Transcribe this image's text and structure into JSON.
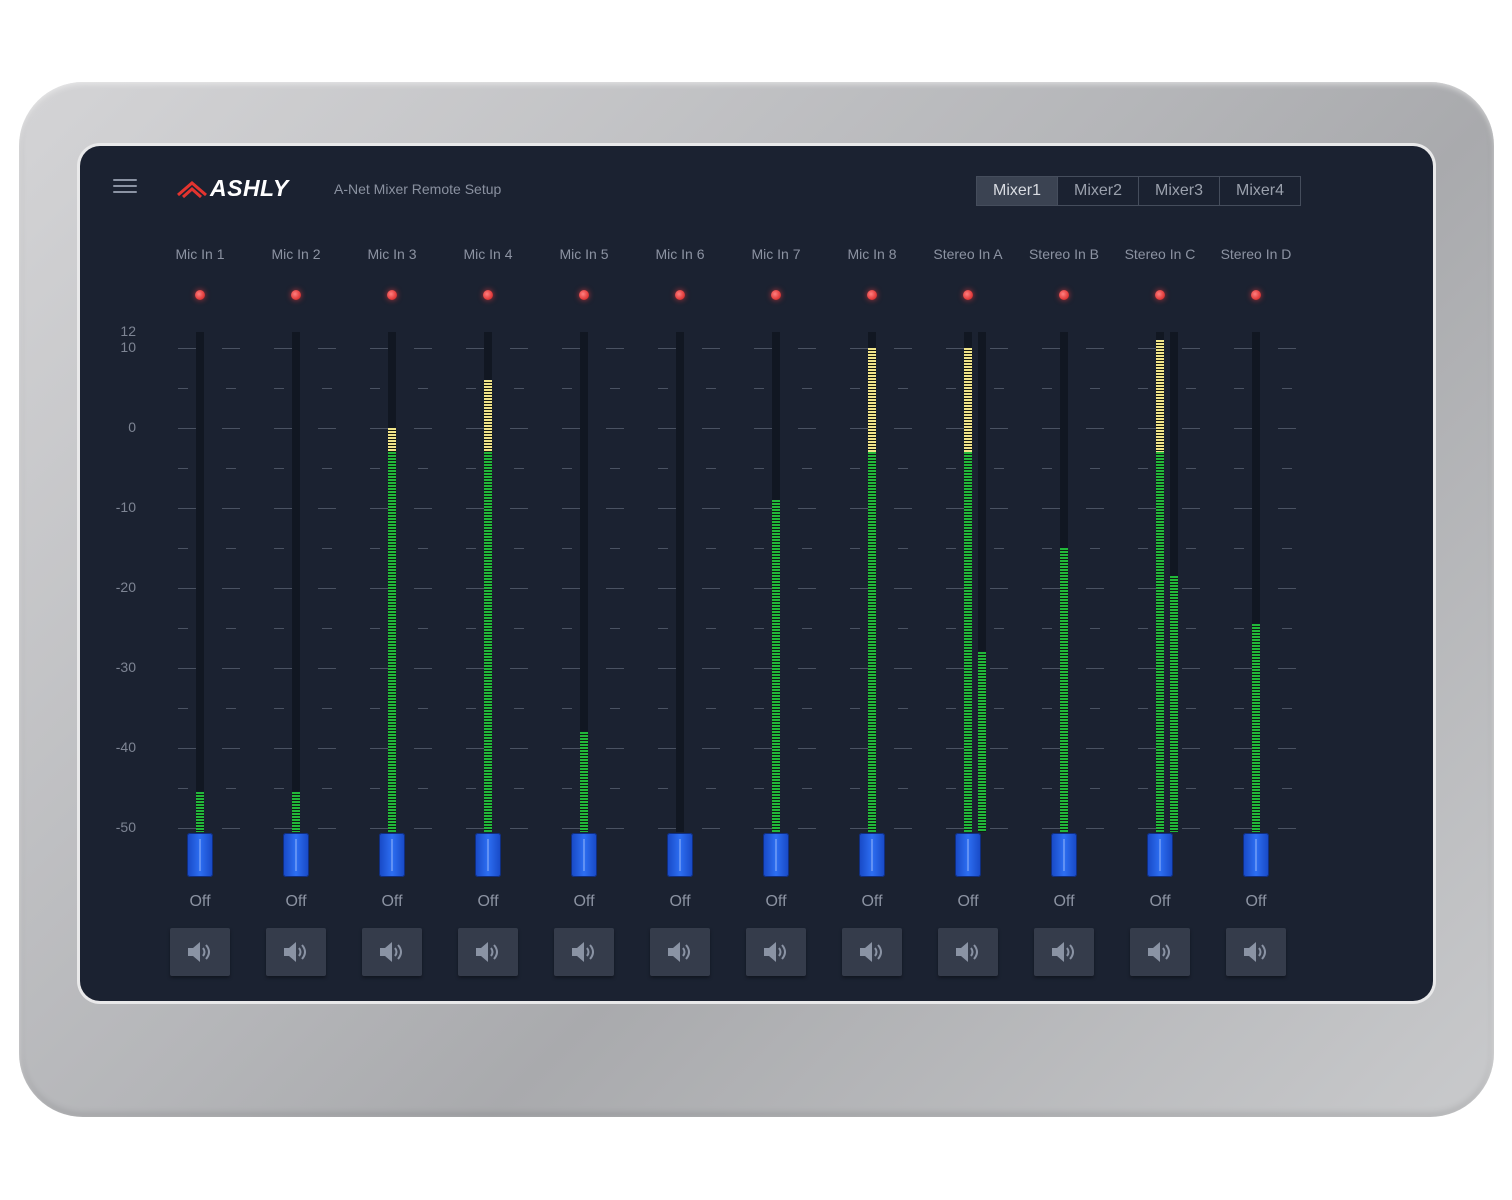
{
  "header": {
    "brand": "ASHLY",
    "subtitle": "A-Net Mixer Remote Setup",
    "tabs": [
      {
        "label": "Mixer1",
        "active": true
      },
      {
        "label": "Mixer2",
        "active": false
      },
      {
        "label": "Mixer3",
        "active": false
      },
      {
        "label": "Mixer4",
        "active": false
      }
    ]
  },
  "scale": {
    "labels": [
      "12",
      "10",
      "0",
      "-10",
      "-20",
      "-30",
      "-40",
      "-50"
    ],
    "values": [
      12,
      10,
      0,
      -10,
      -20,
      -30,
      -40,
      -50
    ]
  },
  "colors": {
    "screen": "#1b2231",
    "meter_green": "#22b83a",
    "meter_yellow": "#f0e48a",
    "fader_blue": "#2d6ef2",
    "clip_red": "#e23c3c"
  },
  "channels": [
    {
      "name": "Mic In 1",
      "gain": "Off",
      "meters": [
        -45.5
      ]
    },
    {
      "name": "Mic In 2",
      "gain": "Off",
      "meters": [
        -45.5
      ]
    },
    {
      "name": "Mic In 3",
      "gain": "Off",
      "meters": [
        0
      ]
    },
    {
      "name": "Mic In 4",
      "gain": "Off",
      "meters": [
        6
      ]
    },
    {
      "name": "Mic In 5",
      "gain": "Off",
      "meters": [
        -38
      ]
    },
    {
      "name": "Mic In 6",
      "gain": "Off",
      "meters": [
        -50.5
      ]
    },
    {
      "name": "Mic In 7",
      "gain": "Off",
      "meters": [
        -9
      ]
    },
    {
      "name": "Mic In 8",
      "gain": "Off",
      "meters": [
        10
      ]
    },
    {
      "name": "Stereo In A",
      "gain": "Off",
      "meters": [
        10,
        -28
      ]
    },
    {
      "name": "Stereo In B",
      "gain": "Off",
      "meters": [
        -15
      ]
    },
    {
      "name": "Stereo In C",
      "gain": "Off",
      "meters": [
        11,
        -18.5
      ]
    },
    {
      "name": "Stereo In D",
      "gain": "Off",
      "meters": [
        -24.5
      ]
    }
  ]
}
